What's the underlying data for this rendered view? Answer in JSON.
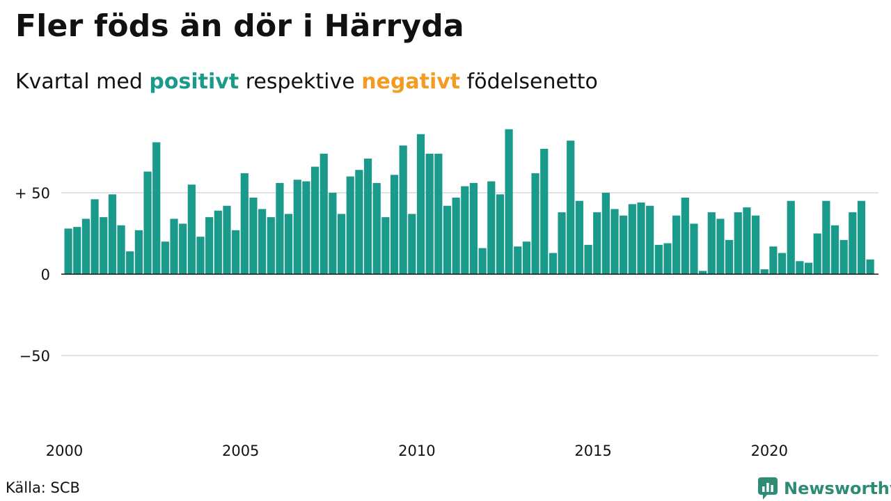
{
  "title": "Fler föds än dör i Härryda",
  "subtitle": {
    "prefix": "Kvartal med ",
    "positive": "positivt",
    "middle": " respektive ",
    "negative": "negativt",
    "suffix": " födelsenetto"
  },
  "source": "Källa: SCB",
  "brand": {
    "name": "Newsworthy",
    "icon": "newsworthy-logo-icon",
    "color": "#2e8b74"
  },
  "colors": {
    "positive": "#1a9a8a",
    "negative": "#f39c1f",
    "grid": "#e2e2e2",
    "zero_line": "#111111"
  },
  "chart_data": {
    "type": "bar",
    "title": "Fler föds än dör i Härryda",
    "x_start": "2000-Q1",
    "frequency": "quarterly",
    "ylim": [
      -100,
      100
    ],
    "yticks": [
      {
        "value": 50,
        "label": "+ 50"
      },
      {
        "value": 0,
        "label": "0"
      },
      {
        "value": -50,
        "label": "−50"
      }
    ],
    "xticks": [
      "2000",
      "2005",
      "2010",
      "2015",
      "2020"
    ],
    "grid": true,
    "values": [
      28,
      29,
      34,
      46,
      35,
      49,
      30,
      14,
      27,
      63,
      81,
      20,
      34,
      31,
      55,
      23,
      35,
      39,
      42,
      27,
      62,
      47,
      40,
      35,
      56,
      37,
      58,
      57,
      66,
      74,
      50,
      37,
      60,
      64,
      71,
      56,
      35,
      61,
      79,
      37,
      86,
      74,
      74,
      42,
      47,
      54,
      56,
      16,
      57,
      49,
      89,
      17,
      20,
      62,
      77,
      13,
      38,
      82,
      45,
      18,
      38,
      50,
      40,
      36,
      43,
      44,
      42,
      18,
      19,
      36,
      47,
      31,
      2,
      38,
      34,
      21,
      38,
      41,
      36,
      3,
      17,
      13,
      45,
      8,
      7,
      25,
      45,
      30,
      21,
      38,
      45,
      9
    ]
  }
}
